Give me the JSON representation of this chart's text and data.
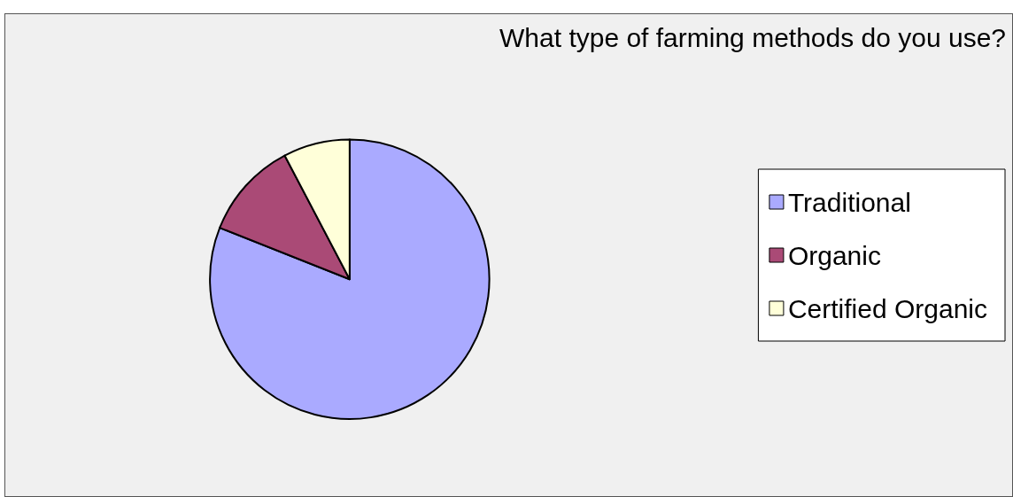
{
  "chart_data": {
    "type": "pie",
    "title": "What type of farming methods do you use?",
    "categories": [
      "Traditional",
      "Organic",
      "Certified Organic"
    ],
    "values": [
      81,
      11.3,
      7.7
    ],
    "colors": [
      "#aaaaff",
      "#aa4a76",
      "#ffffd9"
    ],
    "legend": "right"
  }
}
